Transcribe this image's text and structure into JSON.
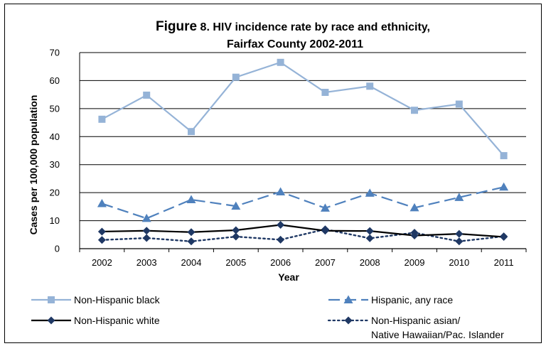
{
  "chart_data": {
    "type": "line",
    "title_lead": "Figure",
    "title_rest": " 8. HIV incidence rate by race and ethnicity,",
    "title_line2": "Fairfax County 2002-2011",
    "xlabel": "Year",
    "ylabel": "Cases per 100,000 population",
    "ylim": [
      0,
      70
    ],
    "yticks": [
      "0",
      "10",
      "20",
      "30",
      "40",
      "50",
      "60",
      "70"
    ],
    "categories": [
      "2002",
      "2003",
      "2004",
      "2005",
      "2006",
      "2007",
      "2008",
      "2009",
      "2010",
      "2011"
    ],
    "grid": true,
    "legend_position": "bottom",
    "series": [
      {
        "name": "Non-Hispanic black",
        "name_line2": "",
        "color": "#95b3d7",
        "marker": "square",
        "dash": "solid",
        "values": [
          46.2,
          54.8,
          41.8,
          61.2,
          66.5,
          55.8,
          58.0,
          49.4,
          51.6,
          33.2
        ]
      },
      {
        "name": "Hispanic, any race",
        "name_line2": "",
        "color": "#4f81bd",
        "marker": "triangle",
        "dash": "longdash",
        "values": [
          16.1,
          10.8,
          17.5,
          15.2,
          20.3,
          14.5,
          19.8,
          14.6,
          18.3,
          22.0
        ]
      },
      {
        "name": "Non-Hispanic white",
        "name_line2": "",
        "color": "#000000",
        "marker_color": "#1f3864",
        "marker": "diamond",
        "dash": "solid",
        "values": [
          6.1,
          6.4,
          5.9,
          6.6,
          8.5,
          6.4,
          6.3,
          4.7,
          5.3,
          4.2
        ]
      },
      {
        "name": "Non-Hispanic asian/",
        "name_line2": "Native Hawaiian/Pac. Islander",
        "color": "#1f3864",
        "marker": "diamond",
        "dash": "dotted",
        "values": [
          3.1,
          3.8,
          2.6,
          4.3,
          3.2,
          6.9,
          3.7,
          5.7,
          2.6,
          4.4
        ]
      }
    ]
  }
}
